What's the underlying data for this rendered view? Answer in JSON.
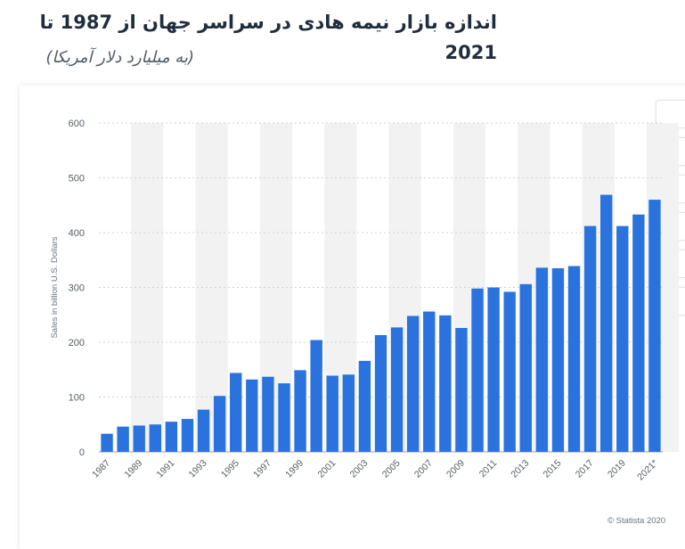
{
  "header": {
    "title": "اندازه بازار نیمه هادی در سراسر جهان از 1987 تا 2021",
    "subtitle": "(به میلیارد دلار آمریکا)"
  },
  "credit": "© Statista 2020",
  "colors": {
    "bar": "#2a72dd",
    "band": "#f2f2f2",
    "grid": "#cfd3d6",
    "title": "#1f2d3d"
  },
  "chart_data": {
    "type": "bar",
    "ylabel": "Sales in billion U.S. Dollars",
    "ylim": [
      0,
      600
    ],
    "yticks": [
      0,
      100,
      200,
      300,
      400,
      500,
      600
    ],
    "grid": true,
    "categories": [
      "1987",
      "1988",
      "1989",
      "1990",
      "1991",
      "1992",
      "1993",
      "1994",
      "1995",
      "1996",
      "1997",
      "1998",
      "1999",
      "2000",
      "2001",
      "2002",
      "2003",
      "2004",
      "2005",
      "2006",
      "2007",
      "2008",
      "2009",
      "2010",
      "2011",
      "2012",
      "2013",
      "2014",
      "2015",
      "2016",
      "2017",
      "2018",
      "2019",
      "2020",
      "2021*"
    ],
    "xtick_labels": [
      "1987",
      "1989",
      "1991",
      "1993",
      "1995",
      "1997",
      "1999",
      "2001",
      "2003",
      "2005",
      "2007",
      "2009",
      "2011",
      "2013",
      "2015",
      "2017",
      "2019",
      "2021*"
    ],
    "series": [
      {
        "values": [
          33,
          46,
          48,
          50,
          55,
          60,
          77,
          102,
          144,
          132,
          137,
          125,
          149,
          204,
          139,
          141,
          166,
          213,
          227,
          248,
          256,
          249,
          226,
          298,
          300,
          292,
          306,
          336,
          335,
          339,
          412,
          469,
          412,
          433,
          460
        ]
      }
    ]
  }
}
